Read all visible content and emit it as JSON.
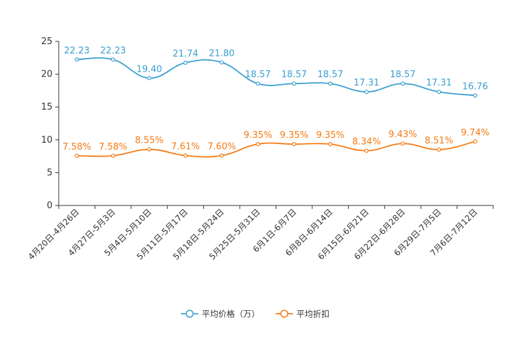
{
  "chart_data": {
    "type": "line",
    "categories": [
      "4月20日-4月26日",
      "4月27日-5月3日",
      "5月4日-5月10日",
      "5月11日-5月17日",
      "5月18日-5月24日",
      "5月25日-5月31日",
      "6月1日-6月7日",
      "6月8日-6月14日",
      "6月15日-6月21日",
      "6月22日-6月28日",
      "6月29日-7月5日",
      "7月6日-7月12日"
    ],
    "ylim": [
      0,
      25
    ],
    "yticks": [
      0,
      5,
      10,
      15,
      20,
      25
    ],
    "series": [
      {
        "name": "平均价格（万）",
        "color": "#3a9fd1",
        "values": [
          22.23,
          22.23,
          19.4,
          21.74,
          21.8,
          18.57,
          18.57,
          18.57,
          17.31,
          18.57,
          17.31,
          16.76
        ],
        "labels": [
          "22.23",
          "22.23",
          "19.40",
          "21.74",
          "21.80",
          "18.57",
          "18.57",
          "18.57",
          "17.31",
          "18.57",
          "17.31",
          "16.76"
        ]
      },
      {
        "name": "平均折扣",
        "color": "#f57a13",
        "values": [
          7.58,
          7.58,
          8.55,
          7.61,
          7.6,
          9.35,
          9.35,
          9.35,
          8.34,
          9.43,
          8.51,
          9.74
        ],
        "labels": [
          "7.58%",
          "7.58%",
          "8.55%",
          "7.61%",
          "7.60%",
          "9.35%",
          "9.35%",
          "9.35%",
          "8.34%",
          "9.43%",
          "8.51%",
          "9.74%"
        ]
      }
    ],
    "legend": "bottom-center",
    "grid": false
  }
}
